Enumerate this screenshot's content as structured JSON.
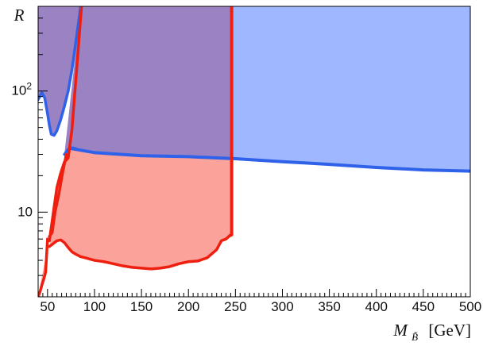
{
  "chart_data": {
    "type": "area",
    "title": "",
    "xlabel": "M_B̃ [GeV]",
    "xlabel_parts": {
      "symbol": "M",
      "subscript": "B̃",
      "unit": "[GeV]"
    },
    "ylabel": "R",
    "xlim": [
      40,
      500
    ],
    "ylim": [
      2,
      500
    ],
    "yscale": "log",
    "x_ticks": [
      50,
      100,
      150,
      200,
      250,
      300,
      350,
      400,
      450,
      500
    ],
    "x_tick_labels": [
      "50",
      "100",
      "150",
      "200",
      "250",
      "300",
      "350",
      "400",
      "450",
      "500"
    ],
    "y_ticks": [
      10,
      100
    ],
    "y_tick_labels": [
      "10",
      "10²"
    ],
    "y_tick_label_parts": [
      {
        "base": "10",
        "exp": ""
      },
      {
        "base": "10",
        "exp": "2"
      }
    ],
    "grid": false,
    "legend": "none",
    "colors": {
      "blue_fill": "#9fb7ff",
      "blue_line": "#2f62e8",
      "red_fill": "#fba39b",
      "red_line": "#ee1f0f",
      "overlap_fill": "#9b82c3"
    },
    "series": [
      {
        "color": "#2f62e8",
        "fill": "#9fb7ff",
        "fill_direction": "above",
        "lower_boundary": {
          "x": [
            40,
            44,
            47,
            50,
            52,
            54,
            57,
            60,
            64,
            68,
            72
          ],
          "y": [
            85,
            97,
            88,
            65,
            52,
            44,
            43,
            47,
            58,
            75,
            100
          ]
        },
        "left_branch": {
          "x": [
            72,
            76,
            80,
            84,
            87
          ],
          "y": [
            100,
            150,
            250,
            420,
            650
          ]
        },
        "kink": {
          "x": [
            68,
            72,
            76,
            80
          ],
          "y": [
            30,
            33,
            34,
            33.5
          ]
        },
        "main_boundary": {
          "x": [
            75,
            100,
            150,
            200,
            250,
            300,
            350,
            400,
            450,
            500
          ],
          "y": [
            33.5,
            31,
            29.2,
            28.7,
            27.6,
            26.1,
            24.8,
            23.4,
            22.3,
            21.8
          ]
        }
      },
      {
        "color": "#ee1f0f",
        "fill": "#fba39b",
        "fill_direction": "above",
        "x_max": 246,
        "outer_left": {
          "x": [
            40,
            42,
            44,
            46,
            48,
            50,
            52,
            54,
            57,
            60,
            64,
            68,
            72,
            76,
            80,
            84,
            87
          ],
          "y": [
            2.0,
            2.2,
            2.5,
            2.8,
            3.2,
            6.0,
            5.8,
            7.5,
            11.0,
            16.0,
            21.0,
            26.0,
            28.0,
            48.0,
            120.0,
            300.0,
            600.0
          ]
        },
        "inner_left": {
          "x": [
            52,
            55,
            58,
            62,
            66,
            70
          ],
          "y": [
            6.3,
            6.8,
            10.0,
            14.0,
            21.0,
            30.0
          ]
        },
        "lower_boundary": {
          "x": [
            52,
            56,
            60,
            64,
            68,
            72,
            76,
            80,
            85,
            90,
            100,
            110,
            120,
            130,
            140,
            150,
            160,
            170,
            180,
            190,
            200,
            210,
            220,
            230,
            235,
            240,
            244
          ],
          "y": [
            5.2,
            5.5,
            5.8,
            5.9,
            5.6,
            5.1,
            4.7,
            4.5,
            4.3,
            4.2,
            4.0,
            3.9,
            3.75,
            3.6,
            3.5,
            3.45,
            3.4,
            3.45,
            3.55,
            3.75,
            3.9,
            3.95,
            4.2,
            4.9,
            5.8,
            6.0,
            6.4
          ]
        },
        "vertical_cut": {
          "x": [
            244,
            246,
            246
          ],
          "y": [
            6.4,
            6.5,
            500
          ]
        }
      }
    ]
  }
}
